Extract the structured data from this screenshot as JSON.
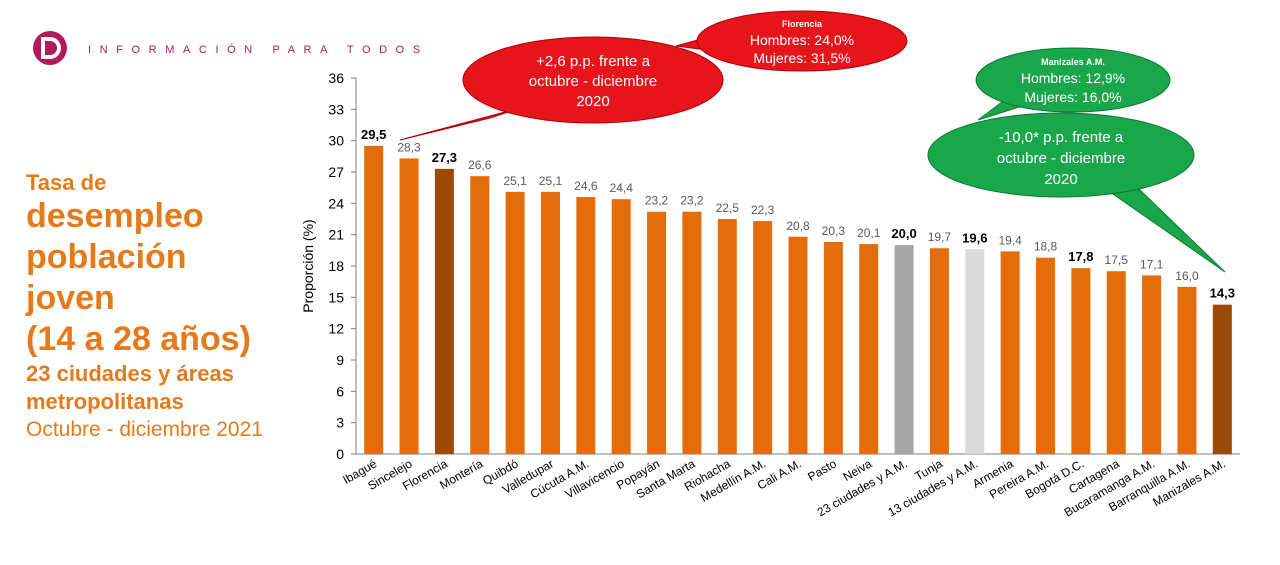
{
  "header": {
    "logo_letter": "D",
    "tagline": "INFORMACIÓN PARA TODOS",
    "brand_color": "#b0195c"
  },
  "left_title": {
    "line1": "Tasa de",
    "line2": "desempleo",
    "line3": "población",
    "line4": "joven",
    "line5": "(14 a 28 años)",
    "line6": "23 ciudades y áreas",
    "line7": "metropolitanas",
    "period": "Octubre - diciembre 2021",
    "color": "#e57a1b"
  },
  "callouts": {
    "florencia_change": {
      "line1": "+2,6 p.p. frente a",
      "line2": "octubre - diciembre",
      "line3": "2020"
    },
    "florencia_gender": {
      "title": "Florencia",
      "line1": "Hombres: 24,0%",
      "line2": "Mujeres: 31,5%"
    },
    "manizales_gender": {
      "title": "Manizales A.M.",
      "line1": "Hombres: 12,9%",
      "line2": "Mujeres: 16,0%"
    },
    "manizales_change": {
      "line1": "-10,0* p.p. frente a",
      "line2": "octubre - diciembre",
      "line3": "2020"
    }
  },
  "chart_data": {
    "type": "bar",
    "ylabel": "Proporción (%)",
    "ylim": [
      0,
      36
    ],
    "yticks": [
      0,
      3,
      6,
      9,
      12,
      15,
      18,
      21,
      24,
      27,
      30,
      33,
      36
    ],
    "grid": false,
    "categories": [
      "Ibagué",
      "Sincelejo",
      "Florencia",
      "Montería",
      "Quibdó",
      "Valledupar",
      "Cúcuta A.M.",
      "Villavicencio",
      "Popayán",
      "Santa Marta",
      "Riohacha",
      "Medellín A.M.",
      "Cali A.M.",
      "Pasto",
      "Neiva",
      "23 ciudades y A.M.",
      "Tunja",
      "13 ciudades y A.M.",
      "Armenia",
      "Pereira A.M.",
      "Bogotá D.C.",
      "Cartagena",
      "Bucaramanga A.M.",
      "Barranquilla A.M.",
      "Manizales A.M."
    ],
    "values": [
      29.5,
      28.3,
      27.3,
      26.6,
      25.1,
      25.1,
      24.6,
      24.4,
      23.2,
      23.2,
      22.5,
      22.3,
      20.8,
      20.3,
      20.1,
      20.0,
      19.7,
      19.6,
      19.4,
      18.8,
      17.8,
      17.5,
      17.1,
      16.0,
      14.3
    ],
    "value_labels": [
      "29,5",
      "28,3",
      "27,3",
      "26,6",
      "25,1",
      "25,1",
      "24,6",
      "24,4",
      "23,2",
      "23,2",
      "22,5",
      "22,3",
      "20,8",
      "20,3",
      "20,1",
      "20,0",
      "19,7",
      "19,6",
      "19,4",
      "18,8",
      "17,8",
      "17,5",
      "17,1",
      "16,0",
      "14,3"
    ],
    "bold_labels": [
      0,
      2,
      15,
      17,
      20,
      24
    ],
    "bar_colors": [
      "#e46c0a",
      "#e46c0a",
      "#9c4a06",
      "#e46c0a",
      "#e46c0a",
      "#e46c0a",
      "#e46c0a",
      "#e46c0a",
      "#e46c0a",
      "#e46c0a",
      "#e46c0a",
      "#e46c0a",
      "#e46c0a",
      "#e46c0a",
      "#e46c0a",
      "#a6a6a6",
      "#e46c0a",
      "#d9d9d9",
      "#e46c0a",
      "#e46c0a",
      "#e46c0a",
      "#e46c0a",
      "#e46c0a",
      "#e46c0a",
      "#9c4a06"
    ]
  }
}
